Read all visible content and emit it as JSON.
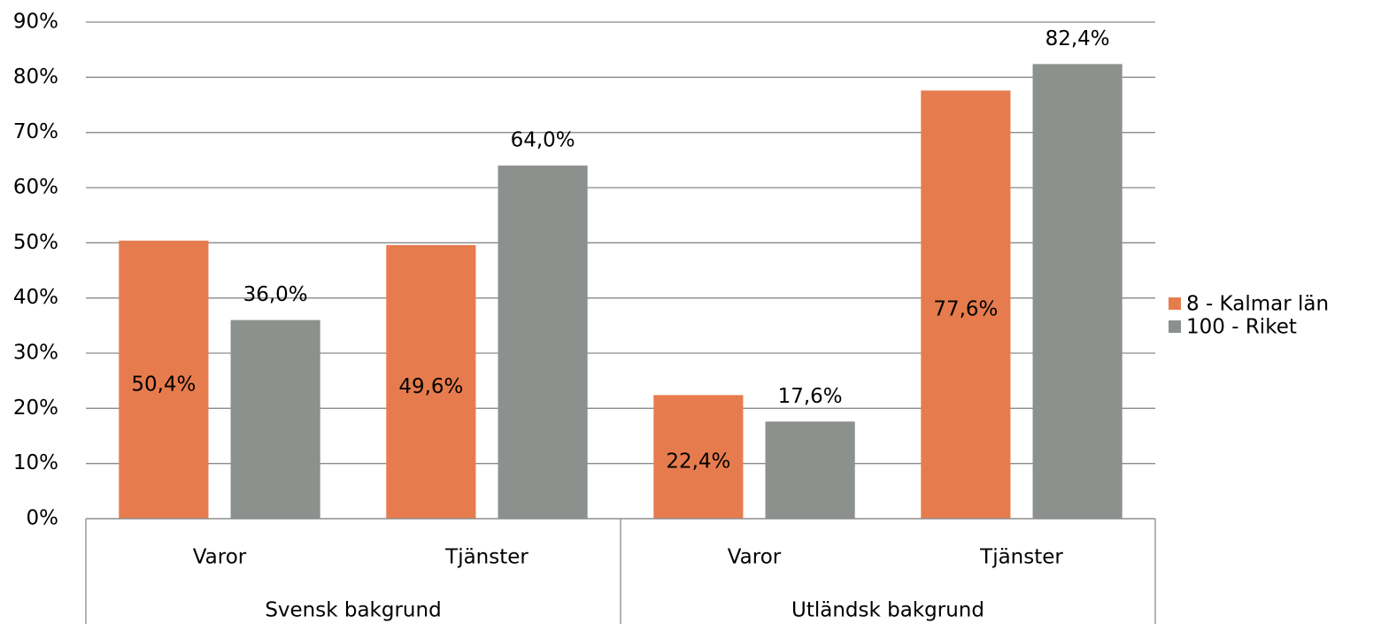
{
  "chart_data": {
    "type": "bar",
    "groups": [
      {
        "label": "Svensk bakgrund",
        "categories": [
          "Varor",
          "Tjänster"
        ]
      },
      {
        "label": "Utländsk bakgrund",
        "categories": [
          "Varor",
          "Tjänster"
        ]
      }
    ],
    "series": [
      {
        "name": "8 - Kalmar län",
        "color": "#e67c4e",
        "values": [
          50.4,
          49.6,
          22.4,
          77.6
        ],
        "value_labels": [
          "50,4%",
          "49,6%",
          "22,4%",
          "77,6%"
        ],
        "label_position": "inside"
      },
      {
        "name": "100 - Riket",
        "color": "#8c918e",
        "values": [
          36.0,
          64.0,
          17.6,
          82.4
        ],
        "value_labels": [
          "36,0%",
          "64,0%",
          "17,6%",
          "82,4%"
        ],
        "label_position": "above"
      }
    ],
    "ylim": [
      0,
      90
    ],
    "yticks": [
      {
        "value": 0,
        "label": "0%"
      },
      {
        "value": 10,
        "label": "10%"
      },
      {
        "value": 20,
        "label": "20%"
      },
      {
        "value": 30,
        "label": "30%"
      },
      {
        "value": 40,
        "label": "40%"
      },
      {
        "value": 50,
        "label": "50%"
      },
      {
        "value": 60,
        "label": "60%"
      },
      {
        "value": 70,
        "label": "70%"
      },
      {
        "value": 80,
        "label": "80%"
      },
      {
        "value": 90,
        "label": "90%"
      }
    ],
    "grid": true,
    "legend": "right"
  }
}
